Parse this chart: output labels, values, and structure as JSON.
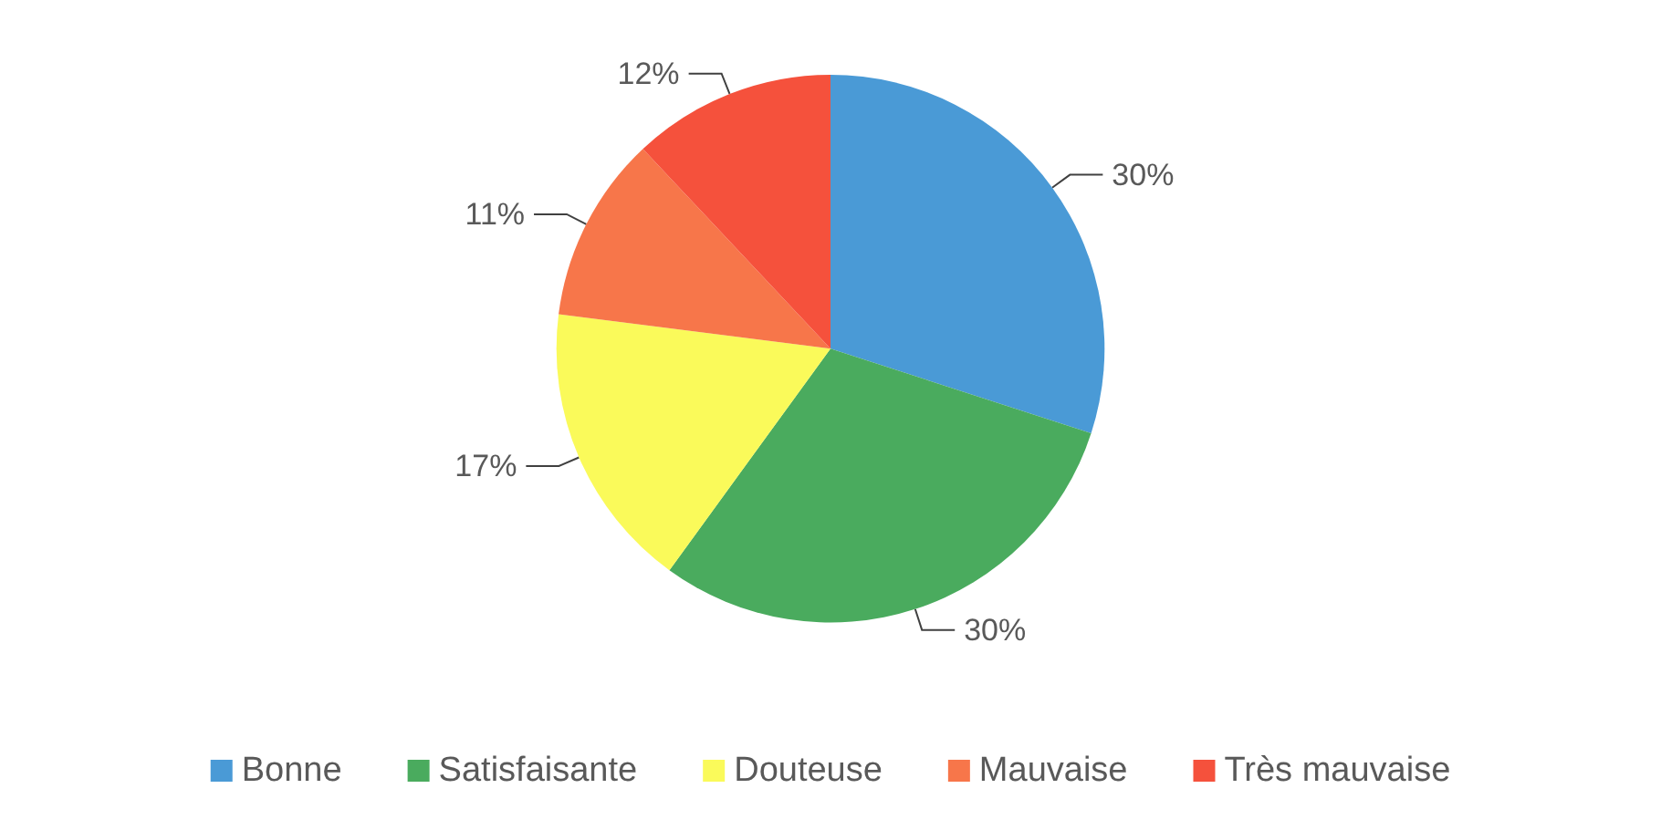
{
  "chart_data": {
    "type": "pie",
    "categories": [
      "Bonne",
      "Satisfaisante",
      "Douteuse",
      "Mauvaise",
      "Très mauvaise"
    ],
    "values": [
      30,
      30,
      17,
      11,
      12
    ],
    "colors": [
      "#4a9ad6",
      "#4aab5e",
      "#fafa5a",
      "#f7764a",
      "#f5513c"
    ],
    "value_labels": [
      "30%",
      "30%",
      "17%",
      "11%",
      "12%"
    ],
    "legend": "bottom"
  }
}
